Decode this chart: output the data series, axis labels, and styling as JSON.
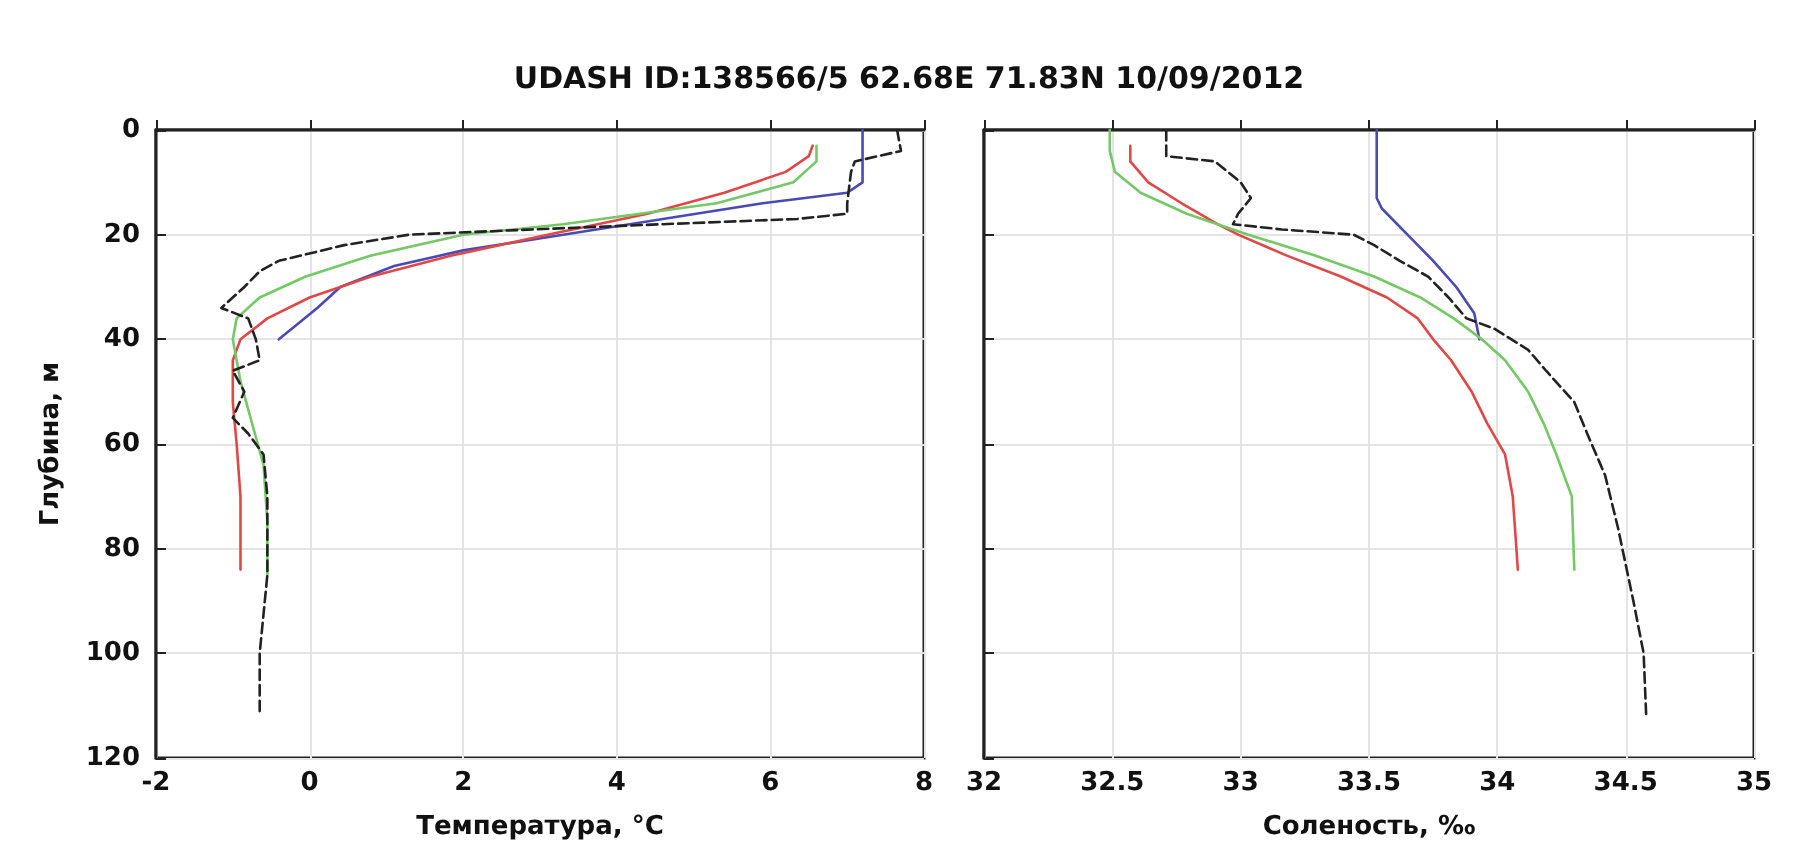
{
  "chart_data": [
    {
      "type": "line",
      "title": "UDASH ID:138566/5 62.68E 71.83N 10/09/2012",
      "xlabel": "Температура, °C",
      "ylabel": "Глубина, м",
      "xlim": [
        -2,
        8
      ],
      "xticks": [
        -2,
        0,
        2,
        4,
        6,
        8
      ],
      "ylim": [
        120,
        0
      ],
      "yticks": [
        0,
        20,
        40,
        60,
        80,
        100,
        120
      ],
      "grid": true,
      "marker": "none",
      "series": [
        {
          "color": "#4a4ab4",
          "line_style": "solid",
          "x": [
            7.2,
            7.2,
            7.0,
            5.9,
            4.6,
            3.3,
            2.0,
            1.1,
            0.4,
            0.1,
            -0.4
          ],
          "values": [
            0,
            10,
            12,
            14,
            17,
            20,
            23,
            26,
            30,
            34,
            40
          ]
        },
        {
          "color": "#e04848",
          "line_style": "solid",
          "x": [
            6.55,
            6.5,
            6.2,
            5.4,
            4.4,
            3.1,
            1.85,
            0.8,
            0.0,
            -0.55,
            -0.9,
            -1.0,
            -1.0,
            -0.95,
            -0.9,
            -0.9
          ],
          "values": [
            3,
            5,
            8,
            12,
            16,
            20,
            24,
            28,
            32,
            36,
            40,
            44,
            52,
            60,
            70,
            84
          ]
        },
        {
          "color": "#74c866",
          "line_style": "solid",
          "x": [
            6.6,
            6.6,
            6.3,
            5.3,
            3.3,
            2.0,
            0.8,
            -0.05,
            -0.65,
            -0.95,
            -1.0,
            -0.9,
            -0.75,
            -0.6,
            -0.55,
            -0.55
          ],
          "values": [
            3,
            6,
            10,
            14,
            18,
            20,
            24,
            28,
            32,
            36,
            40,
            48,
            56,
            64,
            75,
            85
          ]
        },
        {
          "color": "#222222",
          "line_style": "dashed",
          "x": [
            7.65,
            7.7,
            7.1,
            7.05,
            7.0,
            7.0,
            6.35,
            4.6,
            2.9,
            1.3,
            0.45,
            -0.4,
            -0.65,
            -0.85,
            -1.15,
            -0.8,
            -0.7,
            -0.65,
            -1.0,
            -0.85,
            -1.0,
            -0.8,
            -0.6,
            -0.55,
            -0.55,
            -0.65,
            -0.65
          ],
          "values": [
            0,
            4,
            6,
            8,
            14,
            16,
            17,
            18,
            19,
            20,
            22,
            25,
            27,
            30,
            34,
            36,
            40,
            44,
            46,
            50,
            55,
            58,
            62,
            70,
            85,
            100,
            112
          ]
        }
      ]
    },
    {
      "type": "line",
      "xlabel": "Соленость, ‰",
      "xlim": [
        32,
        35
      ],
      "xticks": [
        32,
        32.5,
        33,
        33.5,
        34,
        34.5,
        35
      ],
      "ylim": [
        120,
        0
      ],
      "yticks": [
        0,
        20,
        40,
        60,
        80,
        100,
        120
      ],
      "tick_labels": "x",
      "grid": true,
      "marker": "none",
      "series": [
        {
          "color": "#4a4ab4",
          "line_style": "solid",
          "x": [
            33.53,
            33.53,
            33.55,
            33.65,
            33.75,
            33.84,
            33.91,
            33.93
          ],
          "values": [
            0,
            13,
            15,
            20,
            25,
            30,
            35,
            40
          ]
        },
        {
          "color": "#e04848",
          "line_style": "solid",
          "x": [
            32.57,
            32.57,
            32.64,
            32.77,
            32.91,
            32.99,
            33.18,
            33.39,
            33.57,
            33.69,
            33.75,
            33.82,
            33.9,
            33.96,
            34.03,
            34.06,
            34.08
          ],
          "values": [
            3,
            6,
            10,
            14,
            18,
            20,
            24,
            28,
            32,
            36,
            40,
            44,
            50,
            56,
            62,
            70,
            84
          ]
        },
        {
          "color": "#74c866",
          "line_style": "solid",
          "x": [
            32.49,
            32.49,
            32.51,
            32.61,
            32.79,
            33.03,
            33.29,
            33.52,
            33.7,
            33.83,
            33.94,
            34.03,
            34.12,
            34.18,
            34.23,
            34.29,
            34.3
          ],
          "values": [
            0,
            4,
            8,
            12,
            16,
            20,
            24,
            28,
            32,
            36,
            40,
            44,
            50,
            56,
            62,
            70,
            84
          ]
        },
        {
          "color": "#222222",
          "line_style": "dashed",
          "x": [
            32.71,
            32.71,
            32.9,
            32.95,
            33.0,
            33.04,
            32.99,
            32.97,
            33.16,
            33.44,
            33.52,
            33.62,
            33.73,
            33.81,
            33.88,
            33.99,
            34.12,
            34.19,
            34.3,
            34.35,
            34.42,
            34.47,
            34.53,
            34.57,
            34.58
          ],
          "values": [
            0,
            5,
            6,
            8,
            10,
            13,
            16,
            18,
            19,
            20,
            22,
            25,
            28,
            32,
            36,
            38,
            42,
            46,
            52,
            58,
            66,
            76,
            90,
            100,
            112
          ]
        }
      ]
    }
  ]
}
